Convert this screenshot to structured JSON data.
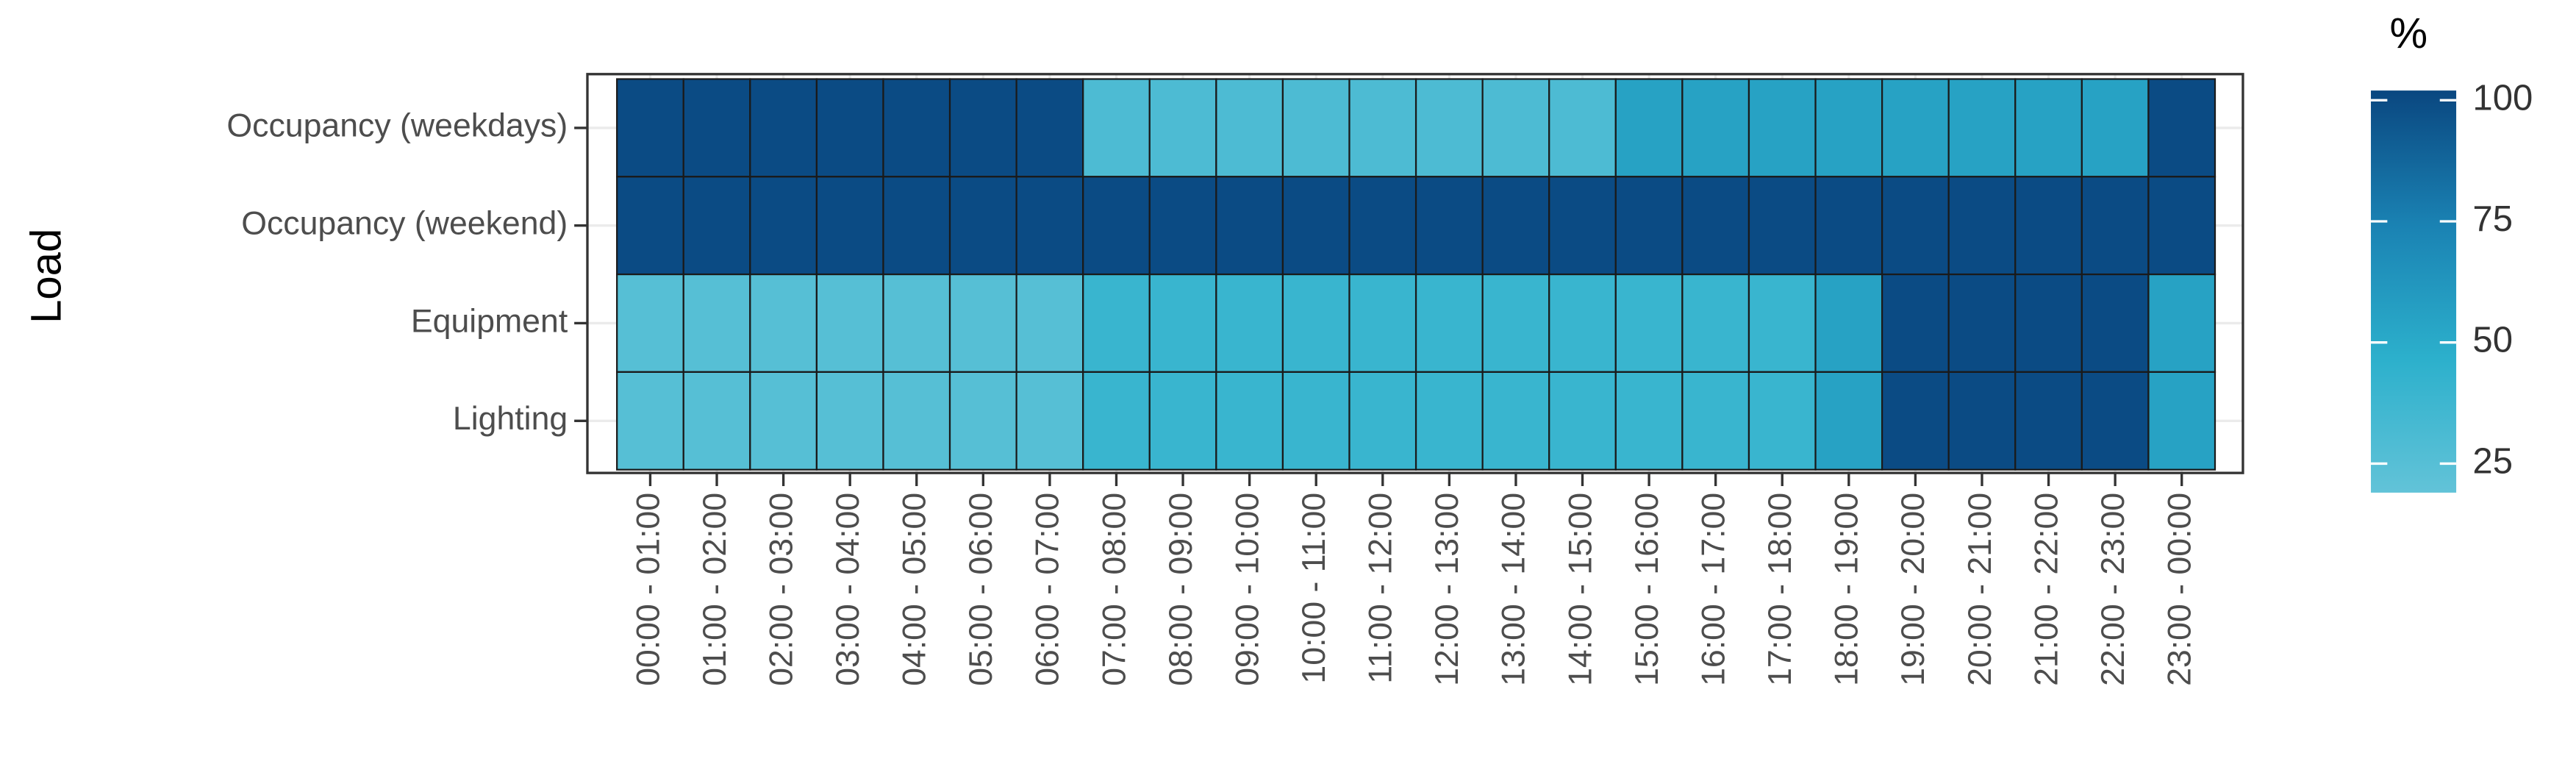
{
  "chart_data": {
    "type": "heatmap",
    "y_label": "Load",
    "x_categories": [
      "00:00 - 01:00",
      "01:00 - 02:00",
      "02:00 - 03:00",
      "03:00 - 04:00",
      "04:00 - 05:00",
      "05:00 - 06:00",
      "06:00 - 07:00",
      "07:00 - 08:00",
      "08:00 - 09:00",
      "09:00 - 10:00",
      "10:00 - 11:00",
      "11:00 - 12:00",
      "12:00 - 13:00",
      "13:00 - 14:00",
      "14:00 - 15:00",
      "15:00 - 16:00",
      "16:00 - 17:00",
      "17:00 - 18:00",
      "18:00 - 19:00",
      "19:00 - 20:00",
      "20:00 - 21:00",
      "21:00 - 22:00",
      "22:00 - 23:00",
      "23:00 - 00:00"
    ],
    "y_categories": [
      "Occupancy (weekdays)",
      "Occupancy (weekend)",
      "Equipment",
      "Lighting"
    ],
    "values": [
      [
        100,
        100,
        100,
        100,
        100,
        100,
        100,
        30,
        30,
        30,
        30,
        30,
        30,
        30,
        30,
        55,
        55,
        55,
        55,
        55,
        55,
        55,
        55,
        100
      ],
      [
        100,
        100,
        100,
        100,
        100,
        100,
        100,
        100,
        100,
        100,
        100,
        100,
        100,
        100,
        100,
        100,
        100,
        100,
        100,
        100,
        100,
        100,
        100,
        100
      ],
      [
        25,
        25,
        25,
        25,
        25,
        25,
        25,
        40,
        40,
        40,
        40,
        40,
        40,
        40,
        40,
        40,
        40,
        40,
        55,
        100,
        100,
        100,
        100,
        55
      ],
      [
        25,
        25,
        25,
        25,
        25,
        25,
        25,
        40,
        40,
        40,
        40,
        40,
        40,
        40,
        40,
        40,
        40,
        40,
        55,
        100,
        100,
        100,
        100,
        55
      ]
    ],
    "grid": true,
    "colorbar": {
      "title": "%",
      "lim": [
        19,
        102
      ],
      "ticks": [
        25,
        50,
        75,
        100
      ],
      "colors": [
        "#62c3d8",
        "#2cb0cc",
        "#1a82b3",
        "#0a4780"
      ]
    }
  }
}
